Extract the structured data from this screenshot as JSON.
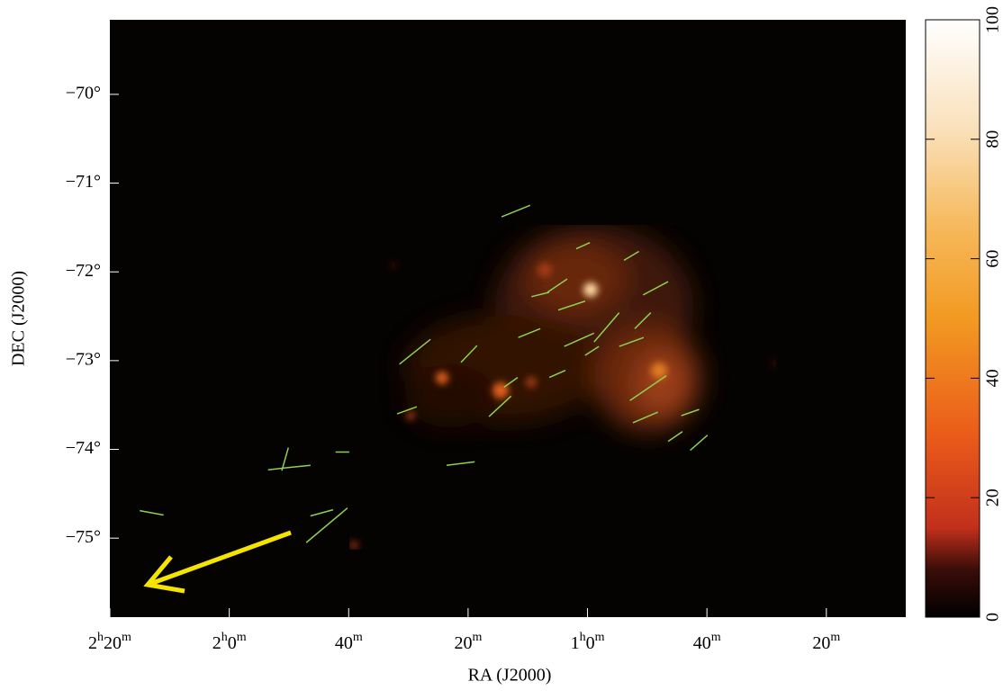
{
  "chart_data": {
    "type": "image",
    "xlabel": "RA (J2000)",
    "ylabel": "DEC (J2000)",
    "xlim": [
      140,
      6.7
    ],
    "ylim": [
      -75.89,
      -69.16
    ],
    "xticks": [
      {
        "value": 140,
        "label": "2h20m"
      },
      {
        "value": 120,
        "label": "2h0m"
      },
      {
        "value": 100,
        "label": "40m"
      },
      {
        "value": 80,
        "label": "20m"
      },
      {
        "value": 60,
        "label": "1h0m"
      },
      {
        "value": 40,
        "label": "40m"
      },
      {
        "value": 20,
        "label": "20m"
      }
    ],
    "yticks": [
      {
        "value": -70,
        "label": "−70°"
      },
      {
        "value": -71,
        "label": "−71°"
      },
      {
        "value": -72,
        "label": "−72°"
      },
      {
        "value": -73,
        "label": "−73°"
      },
      {
        "value": -74,
        "label": "−74°"
      },
      {
        "value": -75,
        "label": "−75°"
      }
    ],
    "vector_color": "#8fd14f",
    "vectors": [
      {
        "x1": 74.4,
        "y1": -71.38,
        "x2": 69.6,
        "y2": -71.25
      },
      {
        "x1": 91.5,
        "y1": -73.04,
        "x2": 86.3,
        "y2": -72.76
      },
      {
        "x1": 135.0,
        "y1": -74.69,
        "x2": 131.0,
        "y2": -74.74
      },
      {
        "x1": 107.1,
        "y1": -75.05,
        "x2": 100.2,
        "y2": -74.66
      },
      {
        "x1": 106.4,
        "y1": -74.75,
        "x2": 102.6,
        "y2": -74.68
      },
      {
        "x1": 113.5,
        "y1": -74.23,
        "x2": 110.8,
        "y2": -74.21
      },
      {
        "x1": 111.2,
        "y1": -74.24,
        "x2": 110.1,
        "y2": -73.98
      },
      {
        "x1": 110.9,
        "y1": -74.21,
        "x2": 106.4,
        "y2": -74.18
      },
      {
        "x1": 102.2,
        "y1": -74.03,
        "x2": 99.9,
        "y2": -74.03
      },
      {
        "x1": 83.6,
        "y1": -74.18,
        "x2": 78.9,
        "y2": -74.14
      },
      {
        "x1": 91.9,
        "y1": -73.6,
        "x2": 88.6,
        "y2": -73.52
      },
      {
        "x1": 76.5,
        "y1": -73.63,
        "x2": 72.8,
        "y2": -73.4
      },
      {
        "x1": 81.2,
        "y1": -73.02,
        "x2": 78.5,
        "y2": -72.83
      },
      {
        "x1": 52.4,
        "y1": -73.7,
        "x2": 48.2,
        "y2": -73.58
      },
      {
        "x1": 46.5,
        "y1": -73.91,
        "x2": 44.1,
        "y2": -73.8
      },
      {
        "x1": 42.8,
        "y1": -74.01,
        "x2": 39.9,
        "y2": -73.84
      },
      {
        "x1": 44.3,
        "y1": -73.62,
        "x2": 41.3,
        "y2": -73.55
      },
      {
        "x1": 53.9,
        "y1": -71.87,
        "x2": 51.4,
        "y2": -71.77
      },
      {
        "x1": 50.7,
        "y1": -72.26,
        "x2": 46.5,
        "y2": -72.11
      },
      {
        "x1": 58.9,
        "y1": -72.79,
        "x2": 54.7,
        "y2": -72.46
      },
      {
        "x1": 63.9,
        "y1": -72.84,
        "x2": 58.9,
        "y2": -72.69
      },
      {
        "x1": 71.6,
        "y1": -72.74,
        "x2": 67.9,
        "y2": -72.64
      },
      {
        "x1": 66.7,
        "y1": -72.23,
        "x2": 63.4,
        "y2": -72.08
      },
      {
        "x1": 61.9,
        "y1": -71.74,
        "x2": 59.6,
        "y2": -71.67
      },
      {
        "x1": 52.9,
        "y1": -73.45,
        "x2": 46.8,
        "y2": -73.17
      },
      {
        "x1": 54.7,
        "y1": -72.84,
        "x2": 50.6,
        "y2": -72.74
      },
      {
        "x1": 52.1,
        "y1": -72.64,
        "x2": 49.4,
        "y2": -72.46
      },
      {
        "x1": 66.4,
        "y1": -73.19,
        "x2": 63.7,
        "y2": -73.11
      },
      {
        "x1": 60.4,
        "y1": -72.94,
        "x2": 58.1,
        "y2": -72.84
      },
      {
        "x1": 74.0,
        "y1": -73.3,
        "x2": 71.7,
        "y2": -73.19
      },
      {
        "x1": 69.4,
        "y1": -72.28,
        "x2": 66.4,
        "y2": -72.23
      },
      {
        "x1": 64.9,
        "y1": -72.43,
        "x2": 60.4,
        "y2": -72.33
      }
    ],
    "colorbar": {
      "lim": [
        0,
        100
      ],
      "ticks": [
        0,
        20,
        40,
        60,
        80,
        100
      ]
    }
  }
}
